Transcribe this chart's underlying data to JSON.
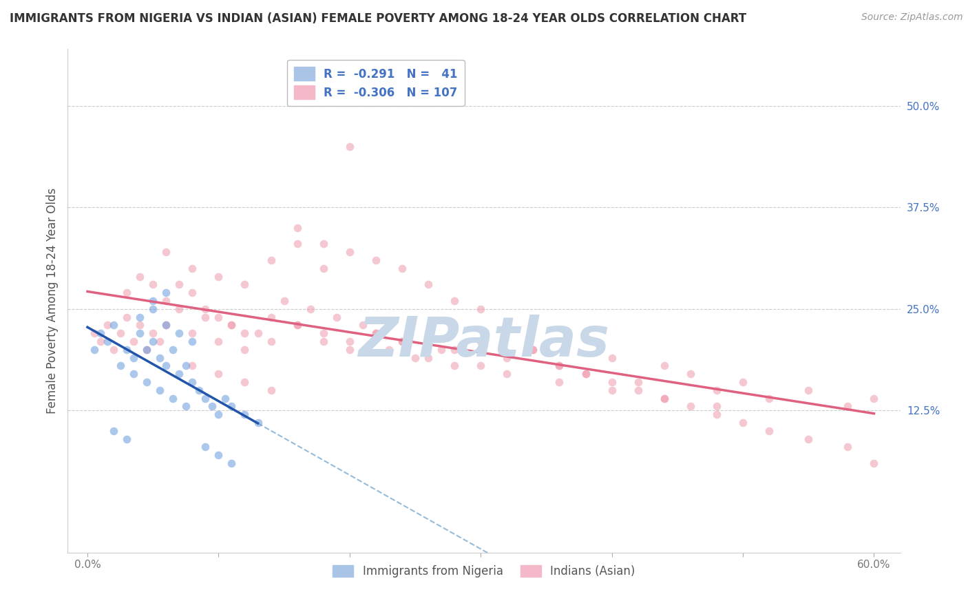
{
  "title": "IMMIGRANTS FROM NIGERIA VS INDIAN (ASIAN) FEMALE POVERTY AMONG 18-24 YEAR OLDS CORRELATION CHART",
  "source": "Source: ZipAtlas.com",
  "ylabel": "Female Poverty Among 18-24 Year Olds",
  "xlim": [
    -1.5,
    62
  ],
  "ylim": [
    -5,
    57
  ],
  "ylabel_vals_right": [
    12.5,
    25.0,
    37.5,
    50.0
  ],
  "watermark": "ZIPatlas",
  "watermark_color": "#c8d8e8",
  "grid_color": "#cccccc",
  "title_color": "#333333",
  "axis_label_color": "#555555",
  "right_tick_color": "#4472c4",
  "blue_line_color": "#2255aa",
  "pink_line_color": "#e06080",
  "dashed_line_color": "#7aaad0",
  "scatter_alpha": 0.55,
  "scatter_size": 70,
  "blue_color": "#6699dd",
  "pink_color": "#ee99aa",
  "blue_scatter_x": [
    0.5,
    1.0,
    1.5,
    2.0,
    2.5,
    3.0,
    3.5,
    4.0,
    4.5,
    5.0,
    5.5,
    6.0,
    6.5,
    7.0,
    7.5,
    8.0,
    8.5,
    9.0,
    9.5,
    10.0,
    10.5,
    11.0,
    12.0,
    13.0,
    4.0,
    5.0,
    6.0,
    7.0,
    8.0,
    3.5,
    4.5,
    5.5,
    6.5,
    7.5,
    2.0,
    3.0,
    9.0,
    10.0,
    11.0,
    5.0,
    6.0
  ],
  "blue_scatter_y": [
    20,
    22,
    21,
    23,
    18,
    20,
    19,
    22,
    20,
    21,
    19,
    18,
    20,
    17,
    18,
    16,
    15,
    14,
    13,
    12,
    14,
    13,
    12,
    11,
    24,
    25,
    23,
    22,
    21,
    17,
    16,
    15,
    14,
    13,
    10,
    9,
    8,
    7,
    6,
    26,
    27
  ],
  "pink_scatter_x": [
    0.5,
    1.0,
    1.5,
    2.0,
    2.5,
    3.0,
    3.5,
    4.0,
    4.5,
    5.0,
    5.5,
    6.0,
    7.0,
    8.0,
    9.0,
    10.0,
    11.0,
    12.0,
    13.0,
    14.0,
    15.0,
    16.0,
    17.0,
    18.0,
    19.0,
    20.0,
    21.0,
    22.0,
    23.0,
    24.0,
    25.0,
    26.0,
    27.0,
    28.0,
    30.0,
    32.0,
    34.0,
    36.0,
    38.0,
    40.0,
    42.0,
    44.0,
    46.0,
    48.0,
    50.0,
    52.0,
    55.0,
    58.0,
    60.0,
    3.0,
    4.0,
    5.0,
    6.0,
    7.0,
    8.0,
    9.0,
    10.0,
    11.0,
    12.0,
    14.0,
    16.0,
    18.0,
    20.0,
    22.0,
    24.0,
    26.0,
    28.0,
    30.0,
    32.0,
    36.0,
    40.0,
    44.0,
    48.0,
    6.0,
    8.0,
    10.0,
    12.0,
    14.0,
    16.0,
    18.0,
    20.0,
    16.0,
    18.0,
    20.0,
    22.0,
    24.0,
    26.0,
    28.0,
    30.0,
    34.0,
    36.0,
    38.0,
    40.0,
    42.0,
    44.0,
    46.0,
    48.0,
    50.0,
    52.0,
    55.0,
    58.0,
    60.0,
    8.0,
    10.0,
    12.0,
    14.0
  ],
  "pink_scatter_y": [
    22,
    21,
    23,
    20,
    22,
    24,
    21,
    23,
    20,
    22,
    21,
    23,
    25,
    22,
    24,
    21,
    23,
    20,
    22,
    21,
    26,
    23,
    25,
    22,
    24,
    21,
    23,
    22,
    20,
    21,
    19,
    22,
    20,
    18,
    21,
    19,
    20,
    18,
    17,
    19,
    16,
    18,
    17,
    15,
    16,
    14,
    15,
    13,
    14,
    27,
    29,
    28,
    26,
    28,
    27,
    25,
    24,
    23,
    22,
    24,
    23,
    21,
    20,
    22,
    21,
    19,
    20,
    18,
    17,
    16,
    15,
    14,
    13,
    32,
    30,
    29,
    28,
    31,
    33,
    30,
    45,
    35,
    33,
    32,
    31,
    30,
    28,
    26,
    25,
    20,
    18,
    17,
    16,
    15,
    14,
    13,
    12,
    11,
    10,
    9,
    8,
    6,
    18,
    17,
    16,
    15
  ]
}
